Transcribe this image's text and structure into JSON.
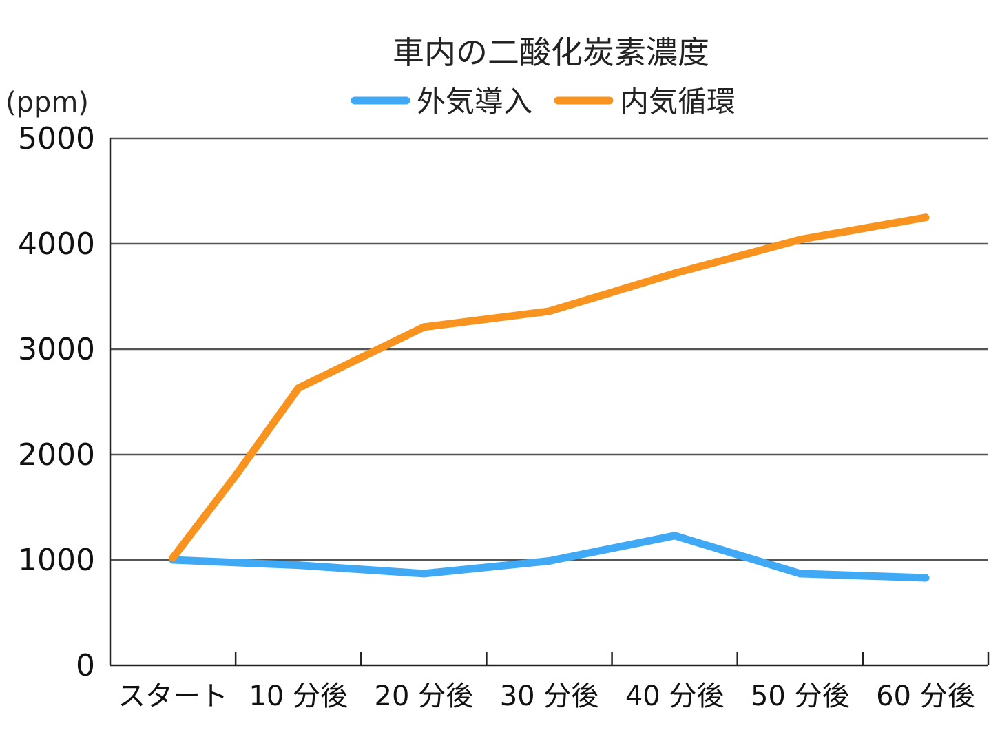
{
  "chart_data": {
    "type": "line",
    "title": "車内の二酸化炭素濃度",
    "ylabel": "(ppm)",
    "xlabel": "",
    "categories": [
      "スタート",
      "10 分後",
      "20 分後",
      "30 分後",
      "40 分後",
      "50 分後",
      "60 分後"
    ],
    "ylim": [
      0,
      5000
    ],
    "yticks": [
      "0",
      "1000",
      "2000",
      "3000",
      "4000",
      "5000"
    ],
    "grid": true,
    "legend_position": "top",
    "series": [
      {
        "name": "外気導入",
        "color": "#3fa9f5",
        "x": [
          0,
          1,
          2,
          3,
          4,
          5,
          6
        ],
        "values": [
          1000,
          950,
          870,
          990,
          1230,
          870,
          830
        ]
      },
      {
        "name": "内気循環",
        "color": "#f7931e",
        "x": [
          0,
          0.5,
          1,
          2,
          3,
          4,
          5,
          6
        ],
        "values": [
          1020,
          1800,
          2630,
          3210,
          3360,
          3720,
          4040,
          4250
        ]
      }
    ]
  }
}
